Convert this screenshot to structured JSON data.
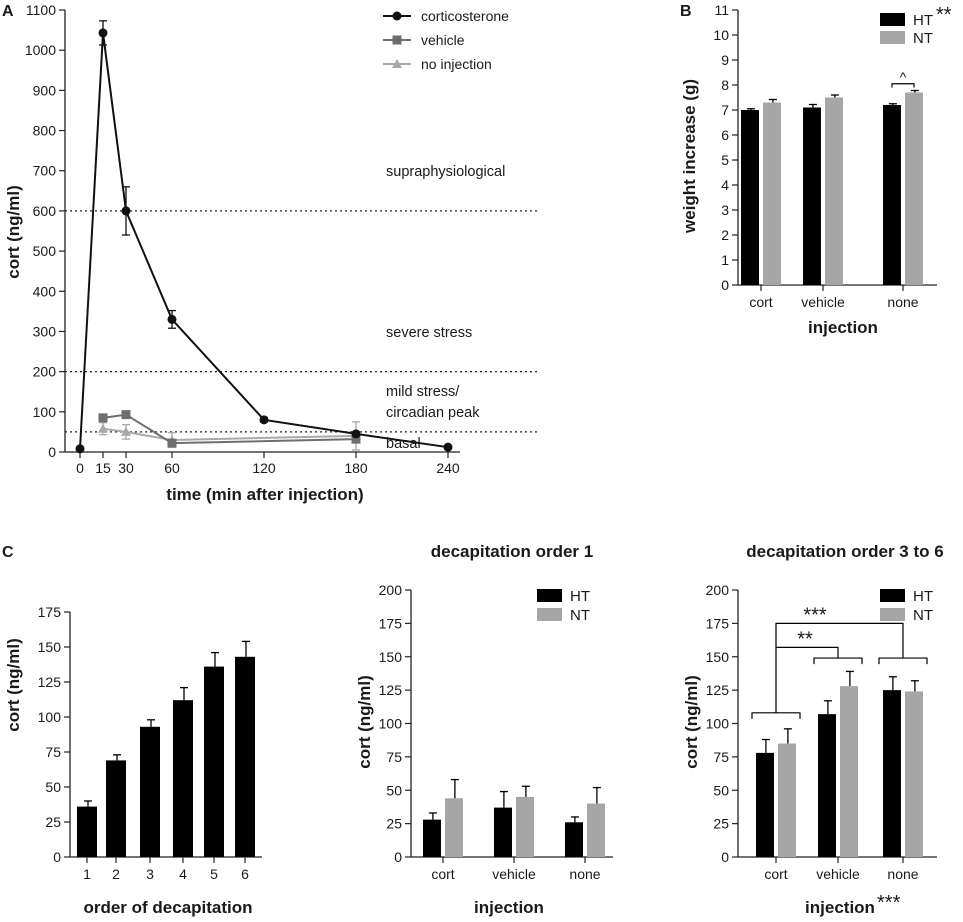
{
  "colors": {
    "cort": "#111111",
    "vehicle": "#6e6e6e",
    "no_injection": "#a8a8a8",
    "HT": "#000000",
    "NT": "#a6a6a6"
  },
  "panels": {
    "A": {
      "letter": "A",
      "regions": [
        "supraphysiological",
        "severe stress",
        "mild stress/",
        "circadian peak",
        "basal"
      ]
    },
    "B": {
      "letter": "B"
    },
    "C": {
      "letter": "C"
    }
  },
  "chart_data": [
    {
      "id": "A",
      "type": "line",
      "xlabel": "time (min after injection)",
      "ylabel": "cort (ng/ml)",
      "ylim": [
        0,
        1100
      ],
      "yticks": [
        0,
        100,
        200,
        300,
        400,
        500,
        600,
        700,
        800,
        900,
        1000,
        1100
      ],
      "xticks": [
        0,
        15,
        30,
        60,
        120,
        180,
        240
      ],
      "series": [
        {
          "name": "corticosterone",
          "marker": "circle",
          "x": [
            0,
            15,
            30,
            60,
            120,
            180,
            240
          ],
          "y": [
            8,
            1043,
            600,
            330,
            80,
            45,
            12
          ],
          "err": [
            0,
            30,
            60,
            22,
            5,
            5,
            3
          ]
        },
        {
          "name": "vehicle",
          "marker": "square",
          "x": [
            15,
            30,
            60,
            180
          ],
          "y": [
            85,
            93,
            22,
            32
          ],
          "err": [
            6,
            8,
            6,
            8
          ]
        },
        {
          "name": "no injection",
          "marker": "triangle",
          "x": [
            15,
            30,
            60,
            180
          ],
          "y": [
            58,
            50,
            30,
            40
          ],
          "err": [
            15,
            18,
            18,
            35
          ]
        }
      ],
      "thresholds": [
        600,
        200,
        50
      ]
    },
    {
      "id": "B",
      "type": "bar",
      "xlabel": "injection",
      "ylabel": "weight increase (g)",
      "ylim": [
        0,
        11
      ],
      "yticks": [
        0,
        1,
        2,
        3,
        4,
        5,
        6,
        7,
        8,
        9,
        10,
        11
      ],
      "categories": [
        "cort",
        "vehicle",
        "none"
      ],
      "series": [
        {
          "name": "HT",
          "values": [
            7.0,
            7.1,
            7.2
          ],
          "err": [
            0.05,
            0.12,
            0.05
          ]
        },
        {
          "name": "NT",
          "values": [
            7.3,
            7.5,
            7.7
          ],
          "err": [
            0.12,
            0.1,
            0.08
          ]
        }
      ],
      "legend_sig": "**",
      "pair_sig": "^"
    },
    {
      "id": "C1",
      "type": "bar",
      "xlabel": "order of decapitation",
      "ylabel": "cort (ng/ml)",
      "ylim": [
        0,
        175
      ],
      "yticks": [
        0,
        25,
        50,
        75,
        100,
        125,
        150,
        175
      ],
      "categories": [
        "1",
        "2",
        "3",
        "4",
        "5",
        "6"
      ],
      "values": [
        36,
        69,
        93,
        112,
        136,
        143
      ],
      "err": [
        4,
        4,
        5,
        9,
        10,
        11
      ]
    },
    {
      "id": "C2",
      "type": "bar",
      "title": "decapitation order 1",
      "xlabel": "injection",
      "ylabel": "cort (ng/ml)",
      "ylim": [
        0,
        200
      ],
      "yticks": [
        0,
        25,
        50,
        75,
        100,
        125,
        150,
        175,
        200
      ],
      "categories": [
        "cort",
        "vehicle",
        "none"
      ],
      "series": [
        {
          "name": "HT",
          "values": [
            28,
            37,
            26
          ],
          "err": [
            5,
            12,
            4
          ]
        },
        {
          "name": "NT",
          "values": [
            44,
            45,
            40
          ],
          "err": [
            14,
            8,
            12
          ]
        }
      ]
    },
    {
      "id": "C3",
      "type": "bar",
      "title": "decapitation order 3 to 6",
      "xlabel": "injection",
      "xlabel_sig": "***",
      "ylabel": "cort (ng/ml)",
      "ylim": [
        0,
        200
      ],
      "yticks": [
        0,
        25,
        50,
        75,
        100,
        125,
        150,
        175,
        200
      ],
      "categories": [
        "cort",
        "vehicle",
        "none"
      ],
      "series": [
        {
          "name": "HT",
          "values": [
            78,
            107,
            125
          ],
          "err": [
            10,
            10,
            10
          ]
        },
        {
          "name": "NT",
          "values": [
            85,
            128,
            124
          ],
          "err": [
            11,
            11,
            8
          ]
        }
      ],
      "comparisons": [
        {
          "label": "**",
          "from": "cort",
          "to": "vehicle"
        },
        {
          "label": "***",
          "from": "cort",
          "to": "none"
        }
      ]
    }
  ]
}
